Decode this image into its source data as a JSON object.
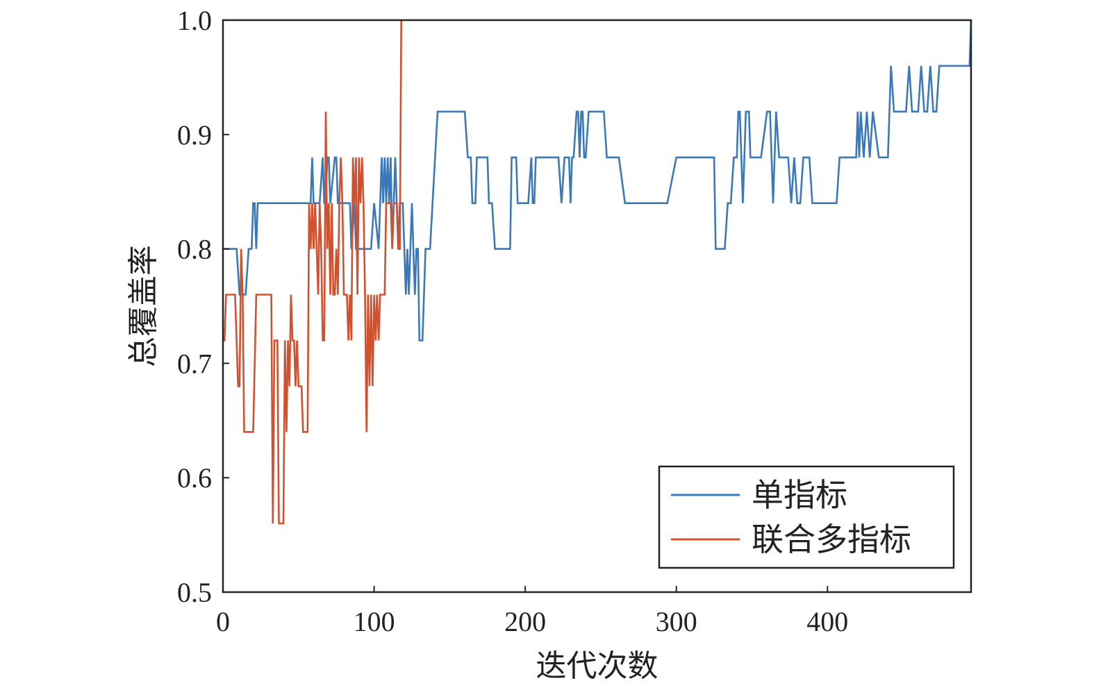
{
  "chart_data": {
    "type": "line",
    "title": "",
    "xlabel": "迭代次数",
    "ylabel": "总覆盖率",
    "xlim": [
      0,
      495
    ],
    "ylim": [
      0.5,
      1.0
    ],
    "xticks": [
      0,
      100,
      200,
      300,
      400
    ],
    "xtick_labels": [
      "0",
      "100",
      "200",
      "300",
      "400"
    ],
    "yticks": [
      0.5,
      0.6,
      0.7,
      0.8,
      0.9,
      1.0
    ],
    "ytick_labels": [
      "0.5",
      "0.6",
      "0.7",
      "0.8",
      "0.9",
      "1.0"
    ],
    "grid": false,
    "legend_position": "bottom-right",
    "series": [
      {
        "name": "单指标",
        "color": "#3b78b8",
        "x": [
          0,
          9,
          11,
          15,
          17,
          19,
          20,
          21,
          22,
          23,
          25,
          56,
          58,
          59,
          60,
          62,
          64,
          66,
          67,
          68,
          69,
          70,
          71,
          74,
          75,
          76,
          78,
          79,
          80,
          84,
          85,
          87,
          88,
          94,
          96,
          98,
          100,
          103,
          104,
          105,
          106,
          107,
          108,
          109,
          110,
          111,
          112,
          113,
          114,
          115,
          116,
          117,
          118,
          119,
          120,
          121,
          122,
          123,
          124,
          125,
          126,
          127,
          128,
          129,
          130,
          131,
          132,
          133,
          134,
          135,
          136,
          137,
          142,
          143,
          145,
          148,
          150,
          160,
          162,
          163,
          164,
          165,
          166,
          167,
          168,
          169,
          170,
          171,
          172,
          173,
          175,
          176,
          177,
          178,
          180,
          181,
          182,
          188,
          190,
          191,
          192,
          193,
          194,
          195,
          196,
          200,
          202,
          204,
          205,
          206,
          207,
          208,
          209,
          210,
          215,
          220,
          222,
          224,
          226,
          227,
          228,
          229,
          230,
          231,
          232,
          234,
          235,
          236,
          237,
          238,
          239,
          240,
          242,
          248,
          252,
          254,
          256,
          258,
          262,
          266,
          270,
          275,
          282,
          290,
          294,
          300,
          310,
          315,
          320,
          324,
          325,
          326,
          327,
          328,
          329,
          332,
          334,
          336,
          338,
          340,
          341,
          342,
          344,
          346,
          348,
          349,
          350,
          352,
          356,
          360,
          362,
          364,
          366,
          368,
          370,
          372,
          374,
          376,
          378,
          380,
          382,
          384,
          386,
          388,
          390,
          392,
          396,
          400,
          403,
          406,
          408,
          410,
          412,
          414,
          415,
          416,
          417,
          418,
          419,
          420,
          421,
          422,
          424,
          426,
          428,
          430,
          434,
          436,
          438,
          440,
          442,
          444,
          446,
          448,
          450,
          452,
          454,
          456,
          458,
          460,
          462,
          464,
          466,
          468,
          470,
          472,
          474,
          476,
          478,
          480,
          482,
          484,
          486,
          488,
          490,
          492,
          493,
          494,
          495
        ],
        "y": [
          0.8,
          0.8,
          0.76,
          0.76,
          0.8,
          0.8,
          0.84,
          0.84,
          0.8,
          0.84,
          0.84,
          0.84,
          0.84,
          0.88,
          0.84,
          0.84,
          0.84,
          0.88,
          0.84,
          0.84,
          0.88,
          0.88,
          0.84,
          0.88,
          0.88,
          0.84,
          0.84,
          0.84,
          0.84,
          0.84,
          0.8,
          0.84,
          0.8,
          0.8,
          0.8,
          0.8,
          0.84,
          0.8,
          0.84,
          0.88,
          0.84,
          0.88,
          0.84,
          0.88,
          0.84,
          0.88,
          0.8,
          0.84,
          0.88,
          0.84,
          0.8,
          0.84,
          0.84,
          0.84,
          0.8,
          0.76,
          0.8,
          0.76,
          0.8,
          0.84,
          0.8,
          0.76,
          0.8,
          0.8,
          0.72,
          0.72,
          0.72,
          0.76,
          0.8,
          0.8,
          0.8,
          0.8,
          0.92,
          0.92,
          0.92,
          0.92,
          0.92,
          0.92,
          0.88,
          0.88,
          0.88,
          0.84,
          0.84,
          0.84,
          0.88,
          0.88,
          0.88,
          0.88,
          0.88,
          0.88,
          0.88,
          0.84,
          0.84,
          0.84,
          0.8,
          0.8,
          0.8,
          0.8,
          0.8,
          0.88,
          0.88,
          0.88,
          0.88,
          0.84,
          0.84,
          0.84,
          0.84,
          0.88,
          0.84,
          0.84,
          0.88,
          0.88,
          0.88,
          0.88,
          0.88,
          0.88,
          0.88,
          0.84,
          0.88,
          0.88,
          0.88,
          0.88,
          0.84,
          0.88,
          0.88,
          0.92,
          0.92,
          0.88,
          0.92,
          0.92,
          0.88,
          0.88,
          0.92,
          0.92,
          0.92,
          0.88,
          0.88,
          0.88,
          0.88,
          0.84,
          0.84,
          0.84,
          0.84,
          0.84,
          0.84,
          0.88,
          0.88,
          0.88,
          0.88,
          0.88,
          0.88,
          0.8,
          0.8,
          0.8,
          0.8,
          0.8,
          0.84,
          0.84,
          0.88,
          0.88,
          0.92,
          0.92,
          0.84,
          0.92,
          0.92,
          0.88,
          0.88,
          0.88,
          0.88,
          0.92,
          0.92,
          0.84,
          0.92,
          0.88,
          0.88,
          0.88,
          0.88,
          0.84,
          0.88,
          0.84,
          0.84,
          0.88,
          0.88,
          0.88,
          0.84,
          0.84,
          0.84,
          0.84,
          0.84,
          0.84,
          0.88,
          0.88,
          0.88,
          0.88,
          0.88,
          0.88,
          0.88,
          0.88,
          0.88,
          0.92,
          0.88,
          0.92,
          0.88,
          0.92,
          0.88,
          0.92,
          0.88,
          0.88,
          0.88,
          0.88,
          0.96,
          0.92,
          0.92,
          0.92,
          0.92,
          0.92,
          0.96,
          0.92,
          0.92,
          0.92,
          0.96,
          0.92,
          0.92,
          0.96,
          0.92,
          0.92,
          0.96,
          0.96,
          0.96,
          0.96,
          0.96,
          0.96,
          0.96,
          0.96,
          0.96,
          0.96,
          0.96,
          0.96,
          1.0
        ]
      },
      {
        "name": "联合多指标",
        "color": "#d0512f",
        "x": [
          0,
          1,
          2,
          3,
          4,
          5,
          6,
          7,
          8,
          9,
          10,
          11,
          12,
          13,
          14,
          16,
          18,
          20,
          22,
          24,
          26,
          28,
          30,
          32,
          33,
          34,
          36,
          37,
          38,
          39,
          40,
          41,
          42,
          43,
          44,
          45,
          46,
          47,
          48,
          49,
          50,
          51,
          52,
          53,
          54,
          55,
          56,
          57,
          58,
          59,
          60,
          61,
          62,
          63,
          64,
          65,
          66,
          67,
          68,
          69,
          70,
          71,
          72,
          73,
          74,
          75,
          76,
          77,
          78,
          79,
          80,
          81,
          82,
          83,
          84,
          85,
          86,
          87,
          88,
          89,
          90,
          91,
          92,
          93,
          94,
          95,
          96,
          97,
          98,
          99,
          100,
          101,
          102,
          103,
          104,
          105,
          106,
          107,
          108,
          109,
          110,
          111,
          112,
          113,
          114,
          115,
          116,
          117,
          118
        ],
        "y": [
          0.72,
          0.72,
          0.76,
          0.76,
          0.76,
          0.76,
          0.76,
          0.76,
          0.76,
          0.72,
          0.68,
          0.68,
          0.8,
          0.76,
          0.64,
          0.64,
          0.64,
          0.64,
          0.76,
          0.76,
          0.76,
          0.76,
          0.76,
          0.76,
          0.56,
          0.72,
          0.72,
          0.56,
          0.56,
          0.56,
          0.56,
          0.72,
          0.64,
          0.72,
          0.68,
          0.76,
          0.72,
          0.72,
          0.68,
          0.72,
          0.68,
          0.68,
          0.68,
          0.64,
          0.64,
          0.64,
          0.64,
          0.84,
          0.8,
          0.84,
          0.8,
          0.84,
          0.8,
          0.76,
          0.84,
          0.8,
          0.72,
          0.72,
          0.92,
          0.8,
          0.84,
          0.76,
          0.84,
          0.76,
          0.76,
          0.8,
          0.76,
          0.84,
          0.88,
          0.84,
          0.76,
          0.76,
          0.76,
          0.72,
          0.76,
          0.72,
          0.88,
          0.84,
          0.88,
          0.76,
          0.88,
          0.84,
          0.88,
          0.84,
          0.76,
          0.64,
          0.76,
          0.68,
          0.76,
          0.68,
          0.76,
          0.72,
          0.76,
          0.72,
          0.76,
          0.76,
          0.76,
          0.76,
          0.84,
          0.84,
          0.84,
          0.84,
          0.8,
          0.84,
          0.84,
          0.84,
          0.8,
          0.8,
          1.0
        ]
      }
    ]
  }
}
